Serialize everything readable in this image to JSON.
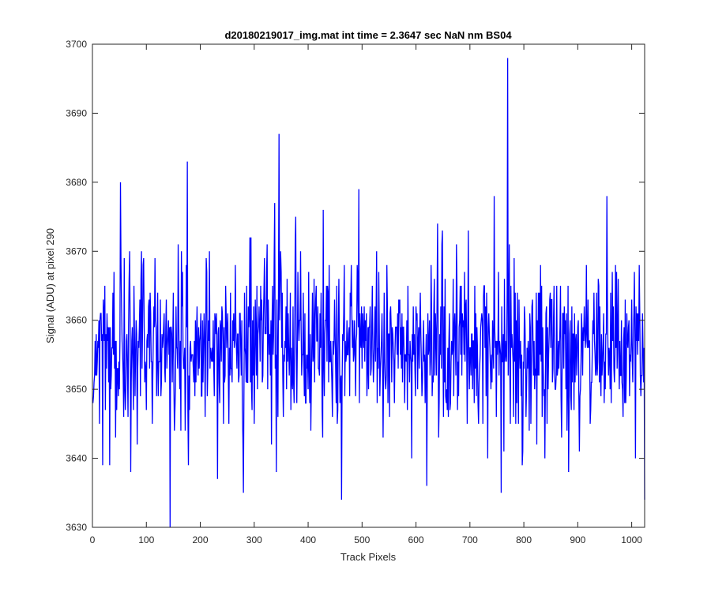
{
  "chart_data": {
    "type": "line",
    "title": "d20180219017_img.mat int time = 2.3647 sec  NaN nm BS04",
    "xlabel": "Track Pixels",
    "ylabel": "Signal (ADU) at pixel 290",
    "xlim": [
      0,
      1024
    ],
    "ylim": [
      3630,
      3700
    ],
    "xticks": [
      0,
      100,
      200,
      300,
      400,
      500,
      600,
      700,
      800,
      900,
      1000
    ],
    "yticks": [
      3630,
      3640,
      3650,
      3660,
      3670,
      3680,
      3690,
      3700
    ],
    "xtick_labels": [
      "0",
      "100",
      "200",
      "300",
      "400",
      "500",
      "600",
      "700",
      "800",
      "900",
      "1000"
    ],
    "ytick_labels": [
      "3630",
      "3640",
      "3650",
      "3660",
      "3670",
      "3680",
      "3690",
      "3700"
    ],
    "grid": false,
    "series_color": "#0000ff",
    "series": [
      {
        "x_start": 1,
        "x_step": 1,
        "noise_model": {
          "mean": 3656,
          "std": 6.2,
          "seed": 290,
          "count": 1024,
          "min": 3630,
          "max": 3698
        },
        "peaks": [
          {
            "x": 52,
            "y": 3680
          },
          {
            "x": 71,
            "y": 3638
          },
          {
            "x": 144,
            "y": 3630
          },
          {
            "x": 176,
            "y": 3683
          },
          {
            "x": 232,
            "y": 3637
          },
          {
            "x": 280,
            "y": 3635
          },
          {
            "x": 338,
            "y": 3677
          },
          {
            "x": 346,
            "y": 3687
          },
          {
            "x": 462,
            "y": 3634
          },
          {
            "x": 494,
            "y": 3679
          },
          {
            "x": 620,
            "y": 3636
          },
          {
            "x": 745,
            "y": 3678
          },
          {
            "x": 758,
            "y": 3635
          },
          {
            "x": 770,
            "y": 3698
          },
          {
            "x": 883,
            "y": 3638
          },
          {
            "x": 954,
            "y": 3678
          },
          {
            "x": 1024,
            "y": 3634
          }
        ]
      }
    ]
  }
}
